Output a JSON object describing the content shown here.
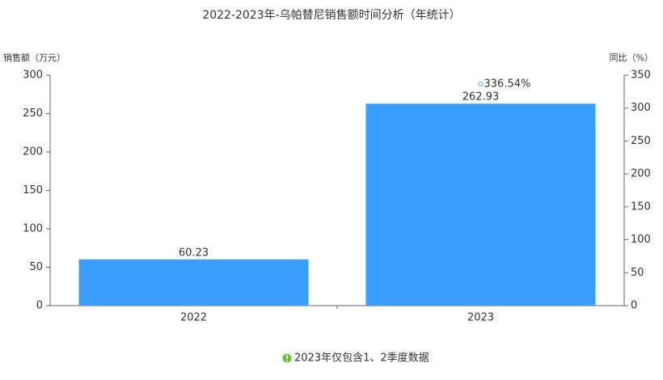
{
  "chart_data": {
    "type": "bar",
    "title": "2022-2023年-乌帕替尼销售额时间分析（年统计）",
    "y_label": "销售额（万元）",
    "y2_label": "同比（%）",
    "categories": [
      "2022",
      "2023"
    ],
    "series": [
      {
        "type": "bar",
        "color": "#3a9ffc",
        "values": [
          60.23,
          262.93
        ]
      },
      {
        "type": "line",
        "axis": "y2",
        "color": "#7dd3e0",
        "values": [
          null,
          336.54
        ],
        "value_labels": [
          null,
          "336.54%"
        ]
      }
    ],
    "ylim": [
      0,
      300
    ],
    "yticks": [
      0,
      50,
      100,
      150,
      200,
      250,
      300
    ],
    "y2lim": [
      0,
      350
    ],
    "y2ticks": [
      0,
      50,
      100,
      150,
      200,
      250,
      300,
      350
    ],
    "note": "2023年仅包含1、2季度数据"
  }
}
